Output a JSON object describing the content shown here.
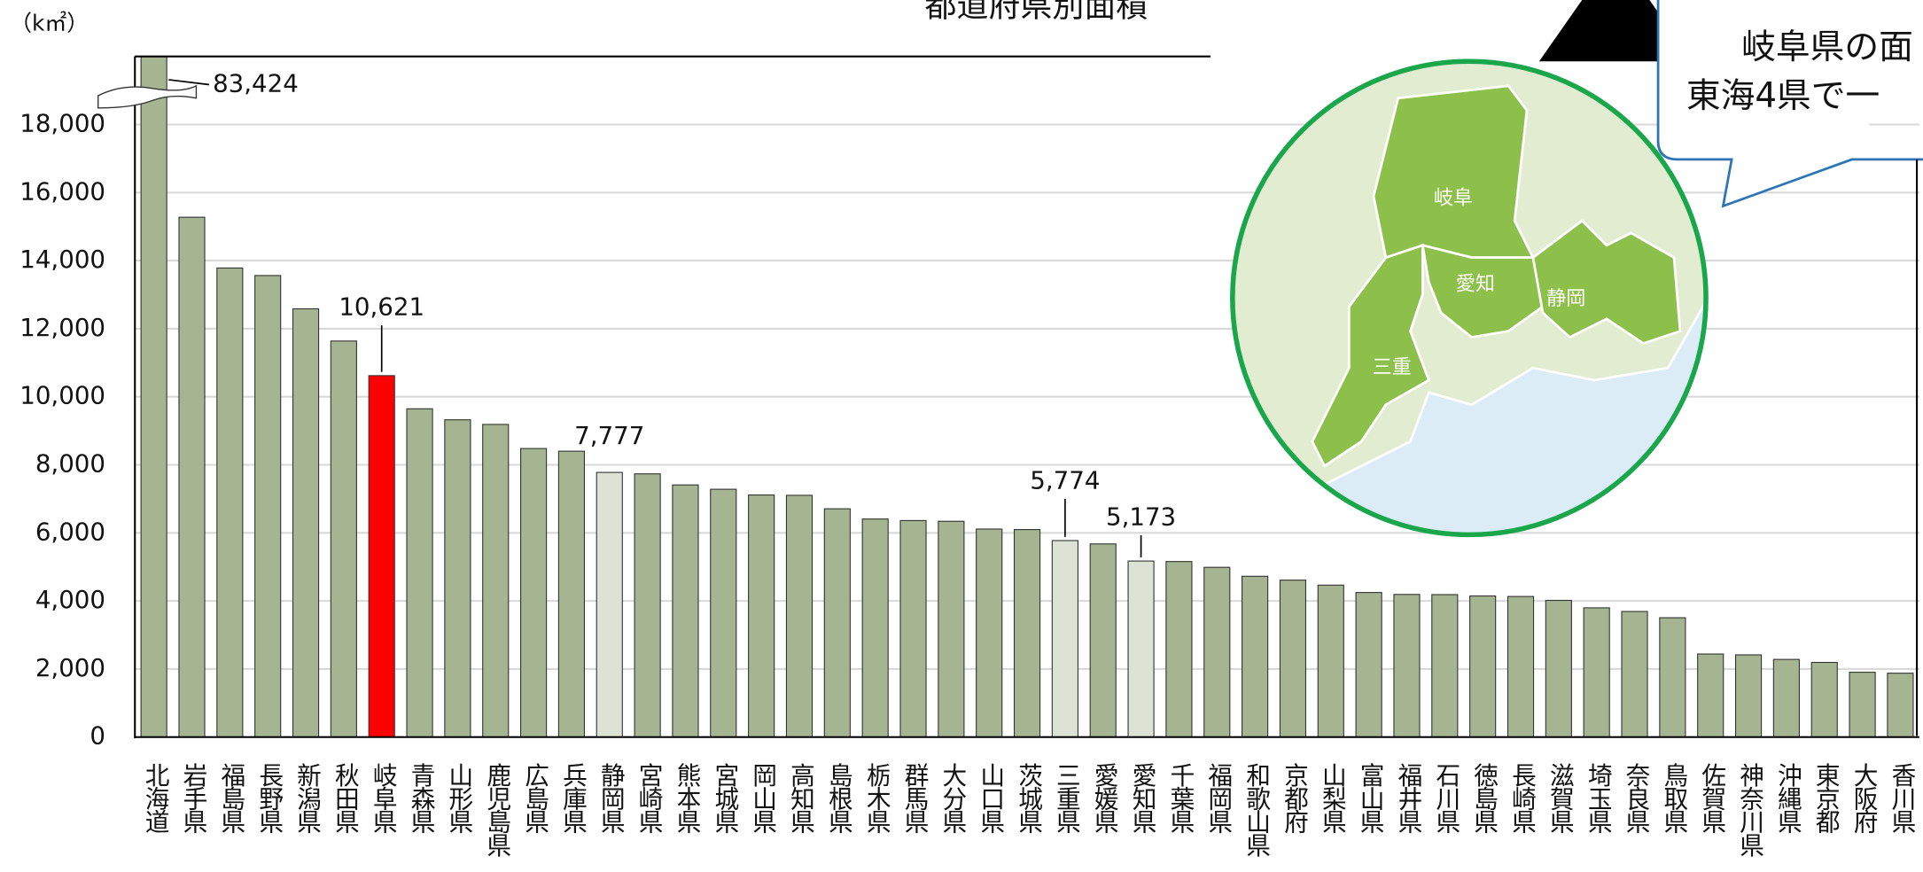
{
  "chart_data": {
    "type": "bar",
    "title": "都道府県別面積",
    "y_unit": "（k㎡）",
    "categories": [
      "北海道",
      "岩手県",
      "福島県",
      "長野県",
      "新潟県",
      "秋田県",
      "岐阜県",
      "青森県",
      "山形県",
      "鹿児島県",
      "広島県",
      "兵庫県",
      "静岡県",
      "宮崎県",
      "熊本県",
      "宮城県",
      "岡山県",
      "高知県",
      "島根県",
      "栃木県",
      "群馬県",
      "大分県",
      "山口県",
      "茨城県",
      "三重県",
      "愛媛県",
      "愛知県",
      "千葉県",
      "福岡県",
      "和歌山県",
      "京都府",
      "山梨県",
      "富山県",
      "福井県",
      "石川県",
      "徳島県",
      "長崎県",
      "滋賀県",
      "埼玉県",
      "奈良県",
      "鳥取県",
      "佐賀県",
      "神奈川県",
      "沖縄県",
      "東京都",
      "大阪府",
      "香川県"
    ],
    "values": [
      83424,
      15275,
      13784,
      13562,
      12584,
      11638,
      10621,
      9646,
      9323,
      9187,
      8479,
      8401,
      7777,
      7735,
      7409,
      7282,
      7114,
      7104,
      6708,
      6408,
      6362,
      6341,
      6113,
      6098,
      5774,
      5676,
      5173,
      5158,
      4988,
      4725,
      4612,
      4465,
      4248,
      4191,
      4186,
      4147,
      4131,
      4017,
      3798,
      3691,
      3507,
      2441,
      2416,
      2282,
      2194,
      1905,
      1877
    ],
    "value_labels": [
      "83,424",
      null,
      null,
      null,
      null,
      null,
      "10,621",
      null,
      null,
      null,
      null,
      null,
      "7,777",
      null,
      null,
      null,
      null,
      null,
      null,
      null,
      null,
      null,
      null,
      null,
      "5,774",
      null,
      "5,173",
      null,
      null,
      null,
      null,
      null,
      null,
      null,
      null,
      null,
      null,
      null,
      null,
      null,
      null,
      null,
      null,
      null,
      null,
      null,
      null
    ],
    "colors": [
      "#a5b592",
      "#a5b592",
      "#a5b592",
      "#a5b592",
      "#a5b592",
      "#a5b592",
      "#ff0000",
      "#a5b592",
      "#a5b592",
      "#a5b592",
      "#a5b592",
      "#a5b592",
      "#dde3d4",
      "#a5b592",
      "#a5b592",
      "#a5b592",
      "#a5b592",
      "#a5b592",
      "#a5b592",
      "#a5b592",
      "#a5b592",
      "#a5b592",
      "#a5b592",
      "#a5b592",
      "#dde3d4",
      "#a5b592",
      "#dde3d4",
      "#a5b592",
      "#a5b592",
      "#a5b592",
      "#a5b592",
      "#a5b592",
      "#a5b592",
      "#a5b592",
      "#a5b592",
      "#a5b592",
      "#a5b592",
      "#a5b592",
      "#a5b592",
      "#a5b592",
      "#a5b592",
      "#a5b592",
      "#a5b592",
      "#a5b592",
      "#a5b592",
      "#a5b592",
      "#a5b592"
    ],
    "ylim": [
      0,
      20000
    ],
    "yticks": [
      0,
      {
        "value": 2000,
        "label": "2,000"
      },
      {
        "value": 4000,
        "label": "4,000"
      },
      {
        "value": 6000,
        "label": "6,000"
      },
      {
        "value": 8000,
        "label": "8,000"
      },
      {
        "value": 10000,
        "label": "10,000"
      },
      {
        "value": 12000,
        "label": "12,000"
      },
      {
        "value": 14000,
        "label": "14,000"
      },
      {
        "value": 16000,
        "label": "16,000"
      },
      {
        "value": 18000,
        "label": "18,000"
      }
    ],
    "grid": true
  },
  "map": {
    "labels": [
      "岐阜",
      "愛知",
      "静岡",
      "三重"
    ]
  },
  "callout": {
    "lines": [
      "岐阜県の面",
      "東海4県で一"
    ]
  }
}
